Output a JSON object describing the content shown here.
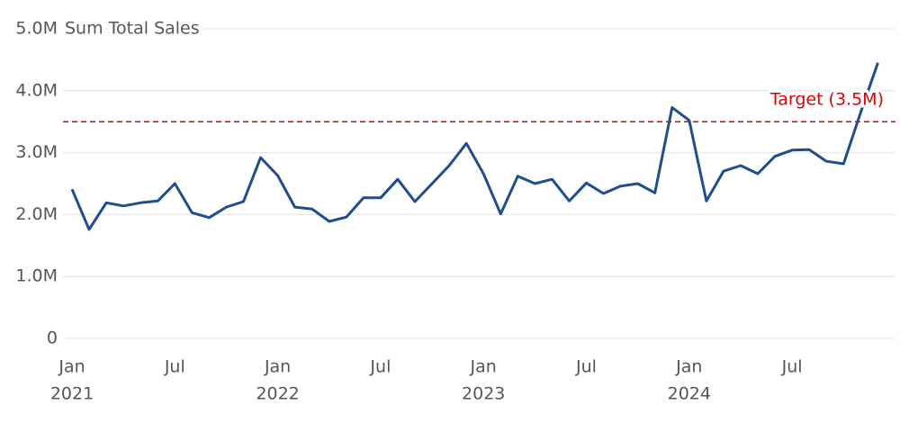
{
  "chart_data": {
    "type": "line",
    "y_label": "Sum Total Sales",
    "x": [
      "2021-01",
      "2021-02",
      "2021-03",
      "2021-04",
      "2021-05",
      "2021-06",
      "2021-07",
      "2021-08",
      "2021-09",
      "2021-10",
      "2021-11",
      "2021-12",
      "2022-01",
      "2022-02",
      "2022-03",
      "2022-04",
      "2022-05",
      "2022-06",
      "2022-07",
      "2022-08",
      "2022-09",
      "2022-10",
      "2022-11",
      "2022-12",
      "2023-01",
      "2023-02",
      "2023-03",
      "2023-04",
      "2023-05",
      "2023-06",
      "2023-07",
      "2023-08",
      "2023-09",
      "2023-10",
      "2023-11",
      "2023-12",
      "2024-01",
      "2024-02",
      "2024-03",
      "2024-04",
      "2024-05",
      "2024-06",
      "2024-07",
      "2024-08",
      "2024-09",
      "2024-10",
      "2024-11",
      "2024-12"
    ],
    "series": [
      {
        "name": "Sum Total Sales",
        "color": "#1f4e8c",
        "values": [
          2410000,
          1760000,
          2190000,
          2140000,
          2190000,
          2220000,
          2500000,
          2030000,
          1950000,
          2120000,
          2210000,
          2920000,
          2630000,
          2120000,
          2090000,
          1890000,
          1960000,
          2270000,
          2270000,
          2570000,
          2210000,
          2500000,
          2790000,
          3150000,
          2660000,
          2010000,
          2620000,
          2500000,
          2570000,
          2220000,
          2510000,
          2340000,
          2460000,
          2500000,
          2350000,
          3730000,
          3520000,
          2220000,
          2700000,
          2790000,
          2660000,
          2940000,
          3040000,
          3050000,
          2860000,
          2820000,
          3650000,
          4450000
        ]
      }
    ],
    "ylim": [
      0,
      5000000
    ],
    "yticks": [
      0,
      {
        "value": 1000000,
        "label": "1.0M"
      },
      {
        "value": 2000000,
        "label": "2.0M"
      },
      {
        "value": 3000000,
        "label": "3.0M"
      },
      {
        "value": 4000000,
        "label": "4.0M"
      },
      {
        "value": 5000000,
        "label": "5.0M"
      }
    ],
    "xticks": [
      {
        "value": "2021-01",
        "label": "Jan"
      },
      {
        "value": "2021-07",
        "label": "Jul"
      },
      {
        "value": "2022-01",
        "label": "Jan"
      },
      {
        "value": "2022-07",
        "label": "Jul"
      },
      {
        "value": "2023-01",
        "label": "Jan"
      },
      {
        "value": "2023-07",
        "label": "Jul"
      },
      {
        "value": "2024-01",
        "label": "Jan"
      },
      {
        "value": "2024-07",
        "label": "Jul"
      }
    ],
    "xtick_years": [
      {
        "value": "2021-01",
        "label": "2021"
      },
      {
        "value": "2022-01",
        "label": "2022"
      },
      {
        "value": "2023-01",
        "label": "2023"
      },
      {
        "value": "2024-01",
        "label": "2024"
      }
    ],
    "reference_line": {
      "value": 3500000,
      "label": "Target (3.5M)",
      "color": "#e00000"
    },
    "grid": true
  }
}
